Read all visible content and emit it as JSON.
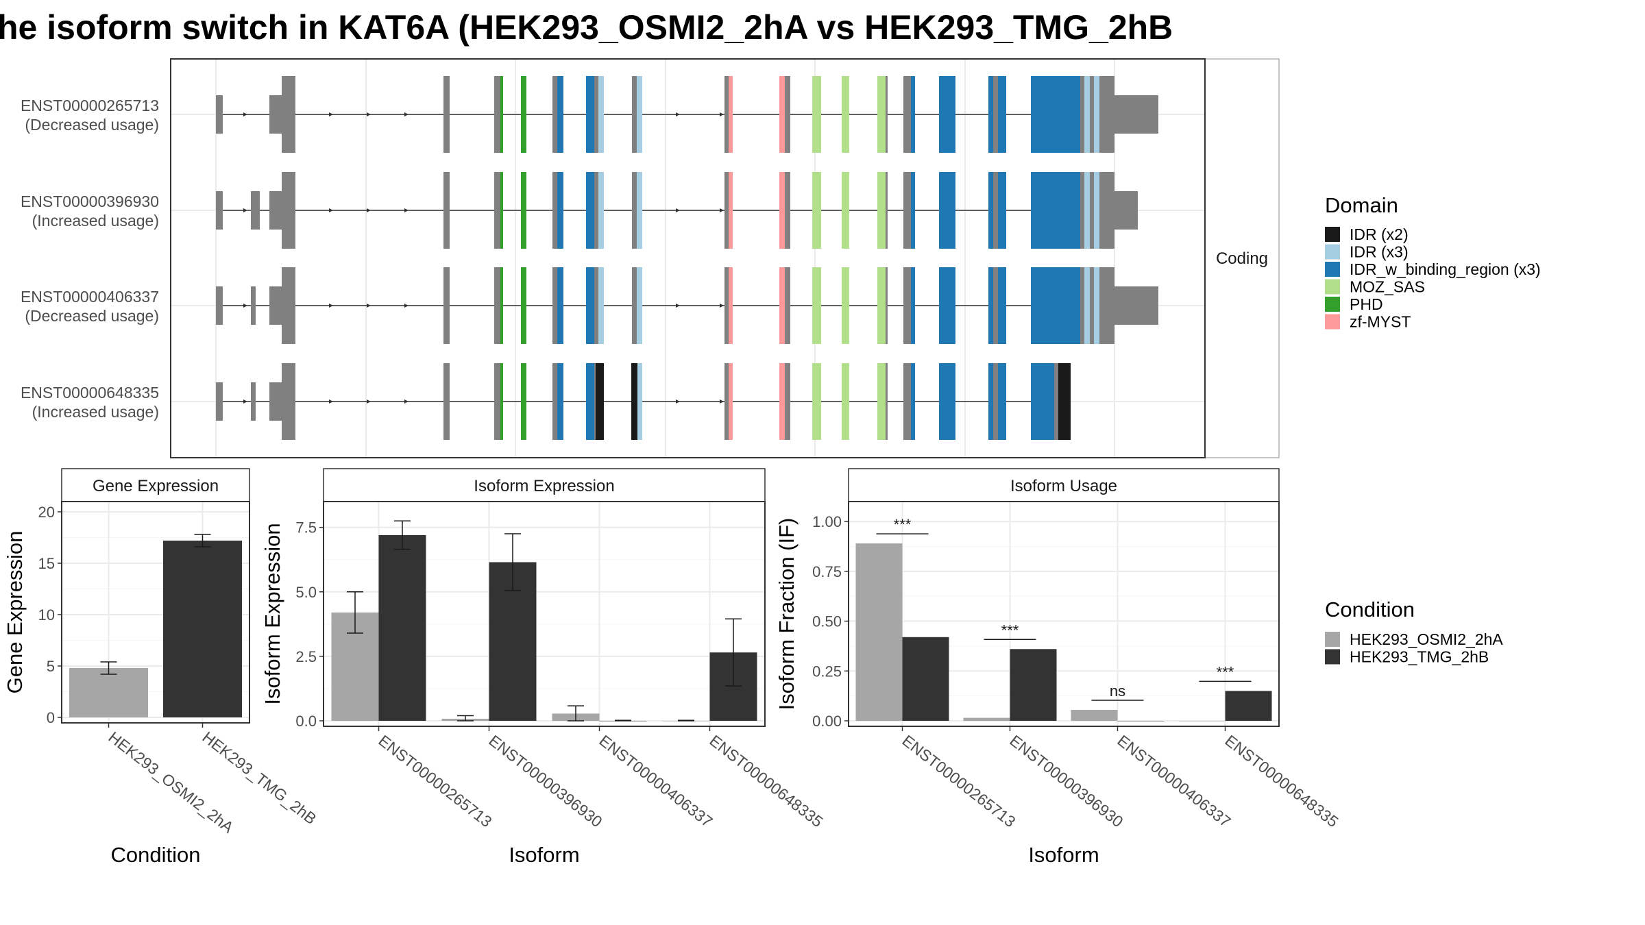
{
  "title": "he isoform switch in KAT6A (HEK293_OSMI2_2hA vs HEK293_TMG_2hB",
  "colors": {
    "gray_bar": "#A6A6A6",
    "dark_bar": "#333333",
    "exon_gray": "#808080"
  },
  "chart_data": [
    {
      "type": "gene-structure",
      "strip_label": "Coding",
      "transcripts": [
        {
          "id": "ENST00000265713",
          "usage": "(Decreased usage)"
        },
        {
          "id": "ENST00000396930",
          "usage": "(Increased usage)"
        },
        {
          "id": "ENST00000406337",
          "usage": "(Decreased usage)"
        },
        {
          "id": "ENST00000648335",
          "usage": "(Increased usage)"
        }
      ],
      "legend_title": "Domain",
      "legend": [
        {
          "label": "IDR (x2)",
          "color": "#1A1A1A"
        },
        {
          "label": "IDR (x3)",
          "color": "#A6CEE3"
        },
        {
          "label": "IDR_w_binding_region (x3)",
          "color": "#1F78B4"
        },
        {
          "label": "MOZ_SAS",
          "color": "#B2DF8A"
        },
        {
          "label": "PHD",
          "color": "#33A02C"
        },
        {
          "label": "zf-MYST",
          "color": "#FB9A99"
        }
      ]
    },
    {
      "type": "bar",
      "strip": "Gene Expression",
      "xlabel": "Condition",
      "ylabel": "Gene Expression",
      "ylim": [
        0,
        21
      ],
      "yticks": [
        0,
        5,
        10,
        15,
        20
      ],
      "categories": [
        "HEK293_OSMI2_2hA",
        "HEK293_TMG_2hB"
      ],
      "values": [
        4.8,
        17.2
      ],
      "errors": [
        0.6,
        0.6
      ]
    },
    {
      "type": "bar",
      "strip": "Isoform Expression",
      "xlabel": "Isoform",
      "ylabel": "Isoform Expression",
      "ylim": [
        0,
        8.5
      ],
      "yticks": [
        0.0,
        2.5,
        5.0,
        7.5
      ],
      "tick_labels": [
        "0.0",
        "2.5",
        "5.0",
        "7.5"
      ],
      "categories": [
        "ENST00000265713",
        "ENST00000396930",
        "ENST00000406337",
        "ENST00000648335"
      ],
      "series": [
        {
          "name": "HEK293_OSMI2_2hA",
          "values": [
            4.2,
            0.08,
            0.28,
            0.0
          ],
          "errors": [
            0.8,
            0.12,
            0.3,
            0.02
          ]
        },
        {
          "name": "HEK293_TMG_2hB",
          "values": [
            7.2,
            6.15,
            0.0,
            2.65
          ],
          "errors": [
            0.55,
            1.1,
            0.02,
            1.3
          ]
        }
      ]
    },
    {
      "type": "bar",
      "strip": "Isoform Usage",
      "xlabel": "Isoform",
      "ylabel": "Isoform Fraction (IF)",
      "ylim": [
        0,
        1.1
      ],
      "yticks": [
        0,
        0.25,
        0.5,
        0.75,
        1.0
      ],
      "tick_labels": [
        "0.00",
        "0.25",
        "0.50",
        "0.75",
        "1.00"
      ],
      "categories": [
        "ENST00000265713",
        "ENST00000396930",
        "ENST00000406337",
        "ENST00000648335"
      ],
      "series": [
        {
          "name": "HEK293_OSMI2_2hA",
          "values": [
            0.89,
            0.015,
            0.055,
            0.0
          ]
        },
        {
          "name": "HEK293_TMG_2hB",
          "values": [
            0.42,
            0.36,
            0.0,
            0.15
          ]
        }
      ],
      "significance": [
        "***",
        "***",
        "ns",
        "***"
      ]
    },
    {
      "type": "legend",
      "legend_title": "Condition",
      "legend": [
        {
          "label": "HEK293_OSMI2_2hA",
          "color": "#A6A6A6"
        },
        {
          "label": "HEK293_TMG_2hB",
          "color": "#333333"
        }
      ]
    }
  ]
}
